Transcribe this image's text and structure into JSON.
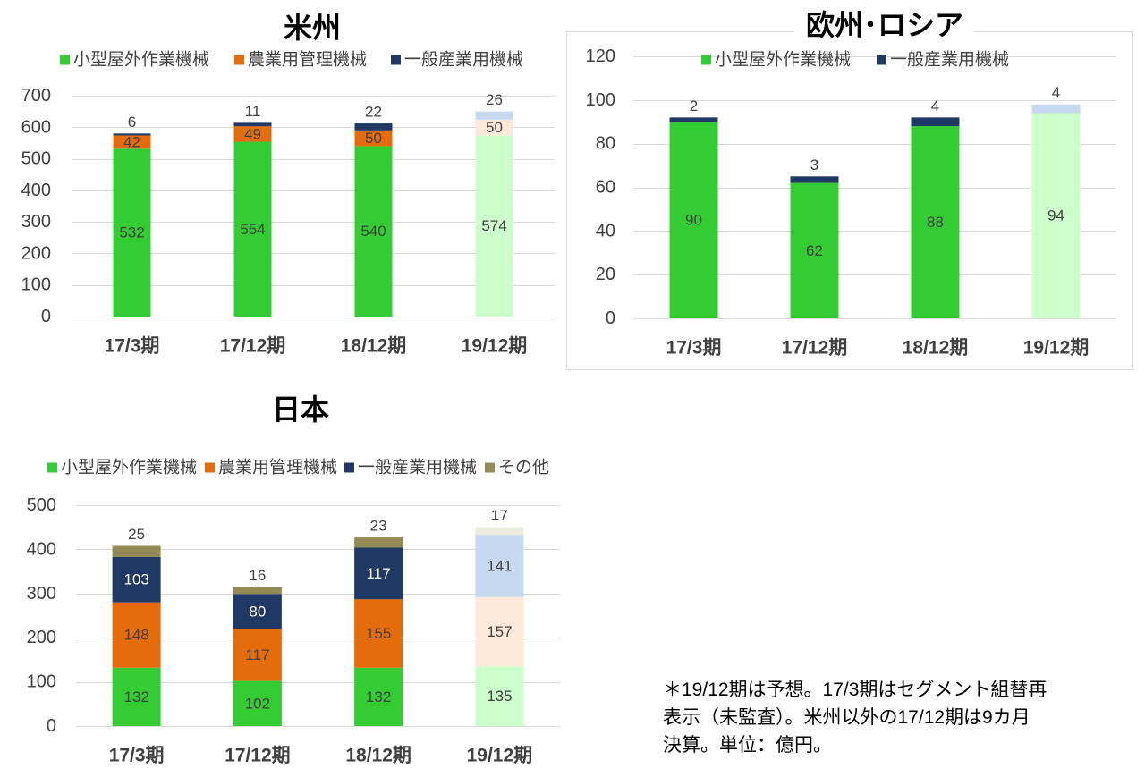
{
  "chart_data": [
    {
      "type": "bar",
      "stacked": true,
      "title": "米州",
      "categories": [
        "17/3期",
        "17/12期",
        "18/12期",
        "19/12期"
      ],
      "forecast": [
        false,
        false,
        false,
        true
      ],
      "ylim": [
        0,
        700
      ],
      "yticks": [
        0,
        100,
        200,
        300,
        400,
        500,
        600,
        700
      ],
      "grid": true,
      "legend": "top",
      "series": [
        {
          "name": "小型屋外作業機械",
          "values": [
            532,
            554,
            540,
            574
          ],
          "color": "#33CC33",
          "forecast_color": "#CCFFCC"
        },
        {
          "name": "農業用管理機械",
          "values": [
            42,
            49,
            50,
            50
          ],
          "color": "#E46C0A",
          "forecast_color": "#FDE9D9"
        },
        {
          "name": "一般産業用機械",
          "values": [
            6,
            11,
            22,
            26
          ],
          "color": "#1F3864",
          "forecast_color": "#C6D9F1"
        }
      ]
    },
    {
      "type": "bar",
      "stacked": true,
      "title": "欧州･ロシア",
      "categories": [
        "17/3期",
        "17/12期",
        "18/12期",
        "19/12期"
      ],
      "forecast": [
        false,
        false,
        false,
        true
      ],
      "ylim": [
        0,
        120
      ],
      "yticks": [
        0,
        20,
        40,
        60,
        80,
        100,
        120
      ],
      "grid": true,
      "legend": "top",
      "series": [
        {
          "name": "小型屋外作業機械",
          "values": [
            90,
            62,
            88,
            94
          ],
          "color": "#33CC33",
          "forecast_color": "#CCFFCC"
        },
        {
          "name": "一般産業用機械",
          "values": [
            2,
            3,
            4,
            4
          ],
          "color": "#1F3864",
          "forecast_color": "#C6D9F1"
        }
      ]
    },
    {
      "type": "bar",
      "stacked": true,
      "title": "日本",
      "categories": [
        "17/3期",
        "17/12期",
        "18/12期",
        "19/12期"
      ],
      "forecast": [
        false,
        false,
        false,
        true
      ],
      "ylim": [
        0,
        500
      ],
      "yticks": [
        0,
        100,
        200,
        300,
        400,
        500
      ],
      "grid": true,
      "legend": "top",
      "series": [
        {
          "name": "小型屋外作業機械",
          "values": [
            132,
            102,
            132,
            135
          ],
          "color": "#33CC33",
          "forecast_color": "#CCFFCC"
        },
        {
          "name": "農業用管理機械",
          "values": [
            148,
            117,
            155,
            157
          ],
          "color": "#E46C0A",
          "forecast_color": "#FDE9D9"
        },
        {
          "name": "一般産業用機械",
          "values": [
            103,
            80,
            117,
            141
          ],
          "color": "#1F3864",
          "forecast_color": "#C6D9F1"
        },
        {
          "name": "その他",
          "values": [
            25,
            16,
            23,
            17
          ],
          "color": "#948A54",
          "forecast_color": "#EEECE1"
        }
      ]
    }
  ],
  "footnote": {
    "lines": [
      "＊19/12期は予想。17/3期はセグメント組替再",
      "表示（未監査）。米州以外の17/12期は9カ月",
      "決算。単位：億円。"
    ]
  }
}
